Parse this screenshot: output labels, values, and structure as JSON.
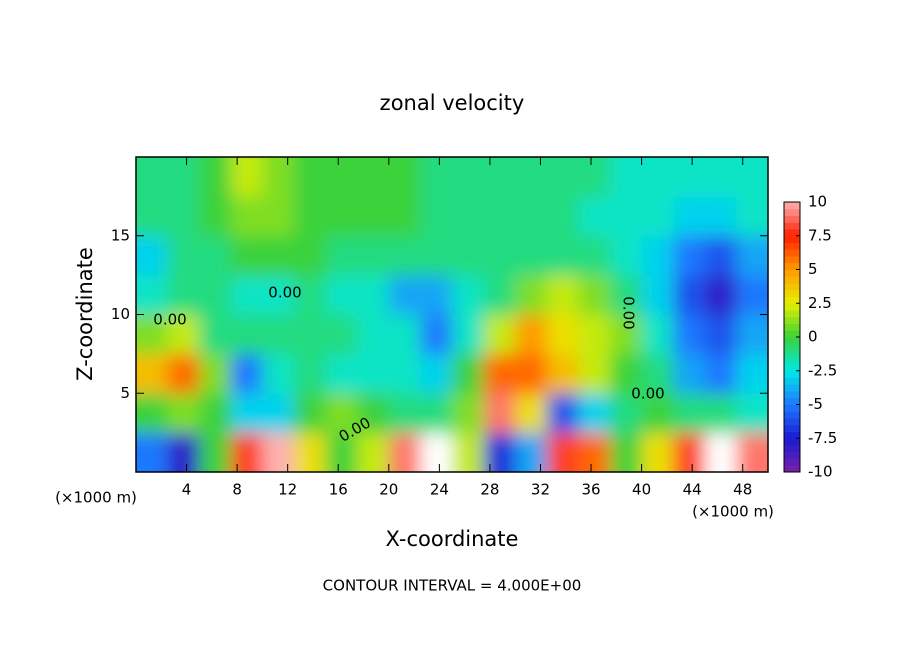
{
  "chart_data": {
    "type": "contour",
    "title": "zonal velocity",
    "xlabel": "X-coordinate",
    "ylabel": "Z-coordinate",
    "x_unit_left": "(×1000 m)",
    "x_unit_right": "(×1000 m)",
    "footer": "CONTOUR INTERVAL = 4.000E+00",
    "contour_labels": [
      "0.00",
      "0.00",
      "0.00",
      "0.00",
      "0.00"
    ],
    "xlim": [
      0,
      50
    ],
    "ylim": [
      0,
      20
    ],
    "xticks": [
      4,
      8,
      12,
      16,
      20,
      24,
      28,
      32,
      36,
      40,
      44,
      48
    ],
    "yticks": [
      5,
      10,
      15
    ],
    "x": [
      1.25,
      3.75,
      6.25,
      8.75,
      11.25,
      13.75,
      16.25,
      18.75,
      21.25,
      23.75,
      26.25,
      28.75,
      31.25,
      33.75,
      36.25,
      38.75,
      41.25,
      43.75,
      46.25,
      48.75
    ],
    "z": [
      1.25,
      3.75,
      6.25,
      8.75,
      11.25,
      13.75,
      16.25,
      18.75
    ],
    "values": [
      [
        -5,
        -8,
        0,
        8,
        10,
        3,
        0,
        2,
        9,
        11,
        2,
        -7,
        -4,
        8,
        6,
        0,
        3,
        8,
        11,
        9
      ],
      [
        0,
        1,
        0,
        -3,
        -3,
        0,
        1,
        0,
        -1,
        -1,
        1,
        9,
        3,
        -6,
        -3,
        -1,
        0,
        -1,
        -1,
        -2
      ],
      [
        4,
        6,
        1,
        -5,
        -2,
        -1,
        -2,
        -2,
        -2,
        -3,
        0,
        6,
        6,
        4,
        2,
        0,
        -1,
        -4,
        -5,
        -3
      ],
      [
        1,
        2,
        -1,
        -1,
        -1,
        -1,
        -1,
        -2,
        -2,
        -5,
        -2,
        2,
        5,
        3,
        2,
        1,
        -2,
        -5,
        -6,
        -4
      ],
      [
        -2,
        -1,
        -1,
        -2,
        -2,
        -1,
        -2,
        -2,
        -4,
        -4,
        -2,
        -1,
        1,
        2,
        1,
        -1,
        -3,
        -6,
        -8,
        -5
      ],
      [
        -3,
        -1,
        -1,
        0,
        0,
        0,
        -1,
        -1,
        -1,
        -1,
        -1,
        -1,
        -1,
        -1,
        -1,
        -2,
        -3,
        -5,
        -6,
        -4
      ],
      [
        -1,
        -1,
        0,
        1,
        1,
        0,
        0,
        0,
        0,
        -1,
        -1,
        -1,
        -1,
        -1,
        -2,
        -2,
        -2,
        -3,
        -3,
        -2
      ],
      [
        -1,
        -1,
        0,
        2,
        1,
        0,
        0,
        0,
        0,
        -1,
        -1,
        -1,
        -1,
        -1,
        -1,
        -2,
        -2,
        -2,
        -2,
        -2
      ]
    ],
    "clim": [
      -10,
      10
    ],
    "colorbar_ticks": [
      -10,
      -7.5,
      -5,
      -2.5,
      0,
      2.5,
      5,
      7.5,
      10
    ],
    "colorscale": [
      {
        "value": -10,
        "color": "#7a1fa8"
      },
      {
        "value": -7.5,
        "color": "#1a1ad0"
      },
      {
        "value": -5,
        "color": "#1e78ff"
      },
      {
        "value": -2.5,
        "color": "#00e8e8"
      },
      {
        "value": 0,
        "color": "#3ad23a"
      },
      {
        "value": 2.5,
        "color": "#e6f000"
      },
      {
        "value": 5,
        "color": "#ff9a00"
      },
      {
        "value": 7.5,
        "color": "#ff2000"
      },
      {
        "value": 10,
        "color": "#ffb0b0"
      }
    ],
    "over_color": "#ffffff"
  }
}
